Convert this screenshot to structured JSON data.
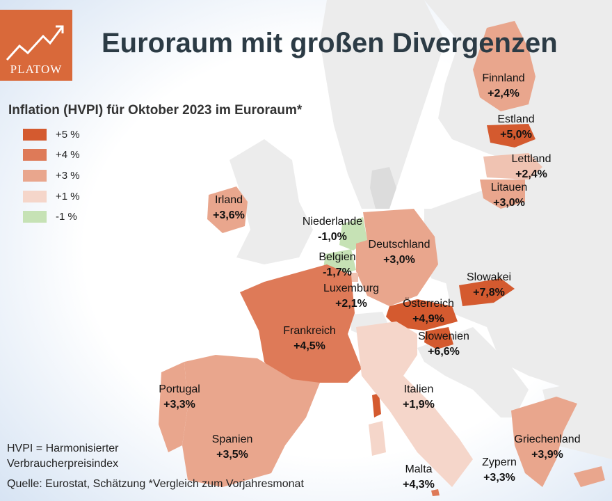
{
  "logo": {
    "text": "PLATOW"
  },
  "title": "Euroraum mit großen Divergenzen",
  "subtitle": "Inflation (HVPI) für Oktober 2023 im Euroraum*",
  "legend": [
    {
      "label": "+5 %",
      "color": "#d45a2f"
    },
    {
      "label": "+4 %",
      "color": "#de7a58"
    },
    {
      "label": "+3 %",
      "color": "#e9a68d"
    },
    {
      "label": "+1 %",
      "color": "#f5d6ca"
    },
    {
      "label": "-1 %",
      "color": "#c6e2b5"
    }
  ],
  "countries": [
    {
      "name": "Finnland",
      "value": "+2,4%"
    },
    {
      "name": "Estland",
      "value": "+5,0%"
    },
    {
      "name": "Lettland",
      "value": "+2,4%"
    },
    {
      "name": "Litauen",
      "value": "+3,0%"
    },
    {
      "name": "Irland",
      "value": "+3,6%"
    },
    {
      "name": "Niederlande",
      "value": "-1,0%"
    },
    {
      "name": "Belgien",
      "value": "-1,7%"
    },
    {
      "name": "Deutschland",
      "value": "+3,0%"
    },
    {
      "name": "Luxemburg",
      "value": "+2,1%"
    },
    {
      "name": "Slowakei",
      "value": "+7,8%"
    },
    {
      "name": "Österreich",
      "value": "+4,9%"
    },
    {
      "name": "Slowenien",
      "value": "+6,6%"
    },
    {
      "name": "Frankreich",
      "value": "+4,5%"
    },
    {
      "name": "Portugal",
      "value": "+3,3%"
    },
    {
      "name": "Spanien",
      "value": "+3,5%"
    },
    {
      "name": "Italien",
      "value": "+1,9%"
    },
    {
      "name": "Griechenland",
      "value": "+3,9%"
    },
    {
      "name": "Zypern",
      "value": "+3,3%"
    },
    {
      "name": "Malta",
      "value": "+4,3%"
    }
  ],
  "footer": {
    "line1": "HVPI = Harmonisierter",
    "line2": "Verbraucherpreisindex",
    "source": "Quelle: Eurostat, Schätzung *Vergleich zum Vorjahresmonat"
  }
}
